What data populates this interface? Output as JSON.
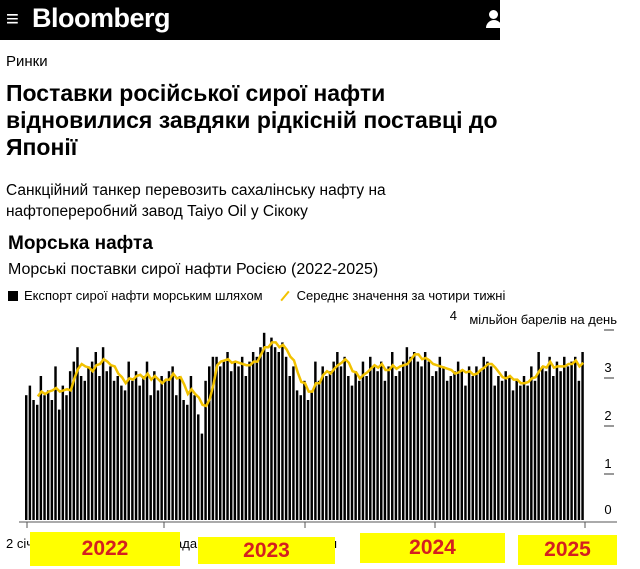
{
  "header": {
    "brand": "Bloomberg",
    "menu_icon": "hamburger-icon",
    "user_icon": "user-icon"
  },
  "article": {
    "section": "Ринки",
    "headline": "Поставки російської сирої нафти відновилися завдяки рідкісній поставці до Японії",
    "dek": "Санкційний танкер перевозить сахалінську нафту на нафтопереробний завод Taiyo Oil у Сікоку"
  },
  "chart_data": {
    "type": "bar",
    "title": "Морська нафта",
    "subtitle": "Морські поставки сирої нафти Росією (2022-2025)",
    "legend": [
      "Експорт сирої нафти морським шляхом",
      "Середнє значення за чотири тижні"
    ],
    "ylabel": "мільйон барелів на день",
    "ylim": [
      0,
      4
    ],
    "yticks": [
      "0",
      "1",
      "2",
      "3",
      "4"
    ],
    "xtick_labels": [
      "2 січ",
      "ада",
      "я"
    ],
    "year_labels": [
      "2022",
      "2023",
      "2024",
      "2025"
    ],
    "colors": {
      "bars": "#000000",
      "average": "#f2c200"
    },
    "values": [
      2.6,
      2.8,
      2.5,
      2.4,
      3.0,
      2.6,
      2.7,
      2.5,
      3.2,
      2.3,
      2.8,
      2.6,
      3.1,
      3.3,
      3.6,
      3.0,
      2.9,
      3.2,
      3.3,
      3.5,
      3.0,
      3.6,
      3.1,
      3.2,
      2.9,
      3.0,
      2.8,
      2.7,
      3.3,
      2.9,
      3.1,
      2.8,
      3.0,
      3.3,
      2.6,
      3.1,
      2.7,
      3.0,
      2.9,
      3.1,
      3.2,
      2.6,
      3.0,
      2.5,
      2.4,
      3.0,
      2.6,
      2.2,
      1.8,
      2.9,
      3.2,
      3.4,
      3.4,
      3.2,
      3.3,
      3.5,
      3.1,
      3.3,
      3.2,
      3.4,
      3.0,
      3.3,
      3.5,
      3.4,
      3.6,
      3.9,
      3.5,
      3.8,
      3.6,
      3.5,
      3.7,
      3.4,
      3.0,
      3.2,
      2.7,
      2.6,
      2.9,
      2.5,
      2.7,
      3.3,
      2.9,
      3.2,
      3.0,
      3.1,
      3.3,
      3.5,
      3.2,
      3.4,
      3.0,
      2.8,
      3.1,
      2.9,
      3.3,
      3.0,
      3.4,
      3.2,
      3.1,
      3.3,
      2.9,
      3.2,
      3.5,
      3.0,
      3.1,
      3.3,
      3.6,
      3.4,
      3.5,
      3.3,
      3.2,
      3.5,
      3.3,
      3.0,
      3.1,
      3.4,
      3.2,
      2.9,
      3.0,
      3.1,
      3.3,
      3.1,
      2.8,
      3.2,
      3.0,
      3.2,
      3.1,
      3.4,
      3.3,
      3.2,
      2.8,
      3.0,
      2.9,
      3.1,
      3.0,
      2.7,
      2.9,
      2.8,
      3.0,
      2.8,
      3.2,
      2.9,
      3.5,
      3.2,
      3.1,
      3.4,
      3.0,
      3.3,
      3.1,
      3.4,
      3.2,
      3.3,
      3.4,
      2.9,
      3.5
    ]
  }
}
